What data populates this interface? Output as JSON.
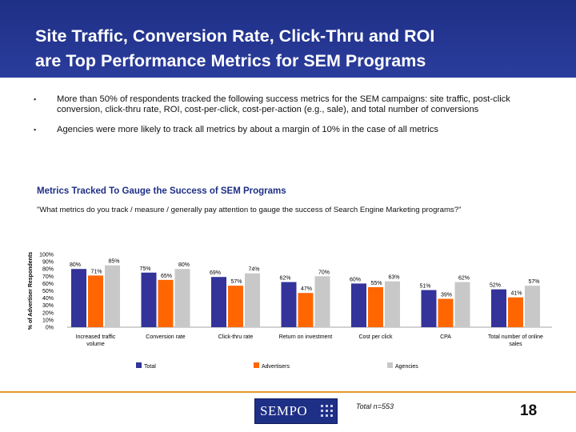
{
  "slide": {
    "title_line1": "Site Traffic, Conversion Rate, Click-Thru and ROI",
    "title_line2": "are Top Performance Metrics for SEM Programs",
    "bullets": [
      "More than 50% of respondents tracked the following success metrics for the SEM campaigns: site traffic, post-click conversion, click-thru rate, ROI, cost-per-click, cost-per-action (e.g., sale), and total number of conversions",
      "Agencies were more likely to track all metrics by about a margin of 10% in the case of all metrics"
    ],
    "chart_heading": "Metrics Tracked To Gauge the Success of SEM Programs",
    "chart_subheading": "\"What metrics do you track / measure / generally pay attention to gauge the success of Search Engine Marketing programs?\"",
    "total_n": "Total n=553",
    "page_number": "18",
    "logo_text": "SEMPO",
    "colors": {
      "header": "#1e2f86",
      "accent_line": "#e59a2a"
    }
  },
  "chart_data": {
    "type": "bar",
    "ylabel": "% of Advertiser Respondents",
    "ylim": [
      0,
      100
    ],
    "yticks": [
      "100%",
      "90%",
      "80%",
      "70%",
      "60%",
      "50%",
      "40%",
      "30%",
      "20%",
      "10%",
      "0%"
    ],
    "categories": [
      [
        "Increased traffic",
        "volume"
      ],
      [
        "Conversion rate"
      ],
      [
        "Click-thru rate"
      ],
      [
        "Return on investment"
      ],
      [
        "Cost per click"
      ],
      [
        "CPA"
      ],
      [
        "Total number of online",
        "sales"
      ]
    ],
    "series": [
      {
        "name": "Total",
        "color": "#33339a",
        "values": [
          80,
          75,
          69,
          62,
          60,
          51,
          52
        ]
      },
      {
        "name": "Advertisers",
        "color": "#ff6600",
        "values": [
          71,
          65,
          57,
          47,
          55,
          39,
          41
        ]
      },
      {
        "name": "Agencies",
        "color": "#c8c8c8",
        "values": [
          85,
          80,
          74,
          70,
          63,
          62,
          57
        ]
      }
    ],
    "data_labels": [
      [
        "80%",
        "75%",
        "69%",
        "62%",
        "60%",
        "51%",
        "52%"
      ],
      [
        "71%",
        "65%",
        "57%",
        "47%",
        "55%",
        "39%",
        "41%"
      ],
      [
        "85%",
        "80%",
        "74%",
        "70%",
        "63%",
        "62%",
        "57%"
      ]
    ],
    "legend_position": "bottom",
    "grid": false
  }
}
